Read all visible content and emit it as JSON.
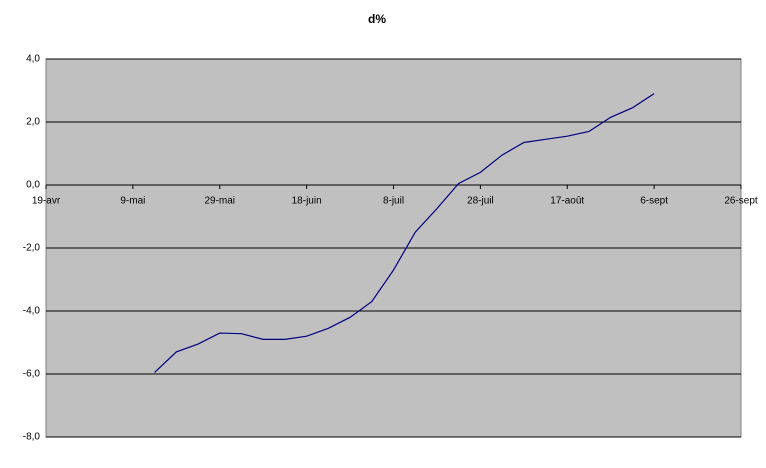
{
  "chart_data": {
    "type": "line",
    "title": "d%",
    "categories": [
      "19-avr",
      null,
      null,
      null,
      "9-mai",
      null,
      null,
      null,
      "29-mai",
      null,
      null,
      null,
      "18-juin",
      null,
      null,
      null,
      "8-juil",
      null,
      null,
      null,
      "28-juil",
      null,
      null,
      null,
      "17-août",
      null,
      null,
      null,
      "6-sept",
      null,
      null,
      null,
      "26-sept"
    ],
    "values": [
      null,
      null,
      null,
      null,
      null,
      -5.95,
      -5.3,
      -5.05,
      -4.7,
      -4.72,
      -4.9,
      -4.9,
      -4.8,
      -4.55,
      -4.2,
      -3.7,
      -2.7,
      -1.5,
      -0.75,
      0.05,
      0.4,
      0.95,
      1.35,
      1.45,
      1.55,
      1.7,
      2.15,
      2.45,
      2.9,
      null,
      null,
      null,
      null
    ],
    "color": "#000080",
    "ylim": [
      -8,
      4
    ],
    "yticks": [
      {
        "value": -8,
        "label": "-8,0"
      },
      {
        "value": -6,
        "label": "-6,0"
      },
      {
        "value": -4,
        "label": "-4,0"
      },
      {
        "value": -2,
        "label": "-2,0"
      },
      {
        "value": 0,
        "label": "0,0"
      },
      {
        "value": 2,
        "label": "2,0"
      },
      {
        "value": 4,
        "label": "4,0"
      }
    ],
    "grid": true
  }
}
